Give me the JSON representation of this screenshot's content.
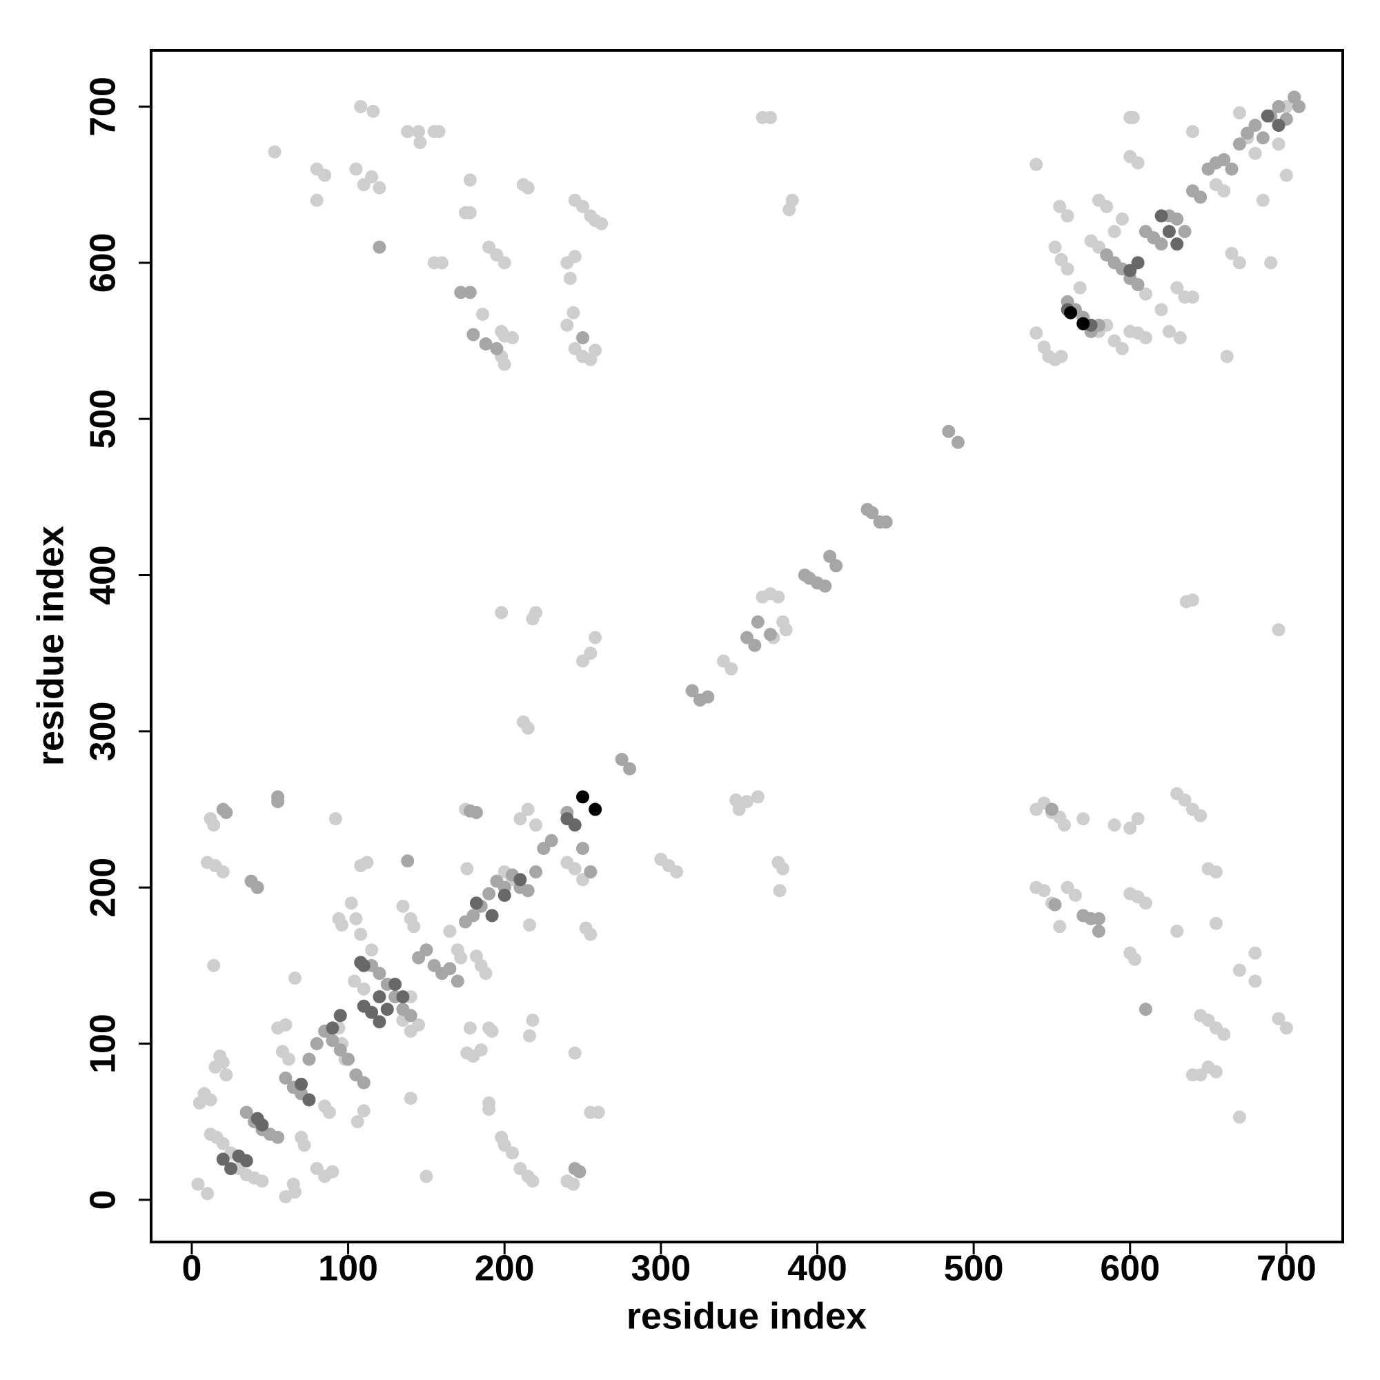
{
  "chart_data": {
    "type": "scatter",
    "x_label": "residue index",
    "y_label": "residue index",
    "xlim": [
      -26,
      736
    ],
    "ylim": [
      -27,
      736
    ],
    "xticks": [
      0,
      100,
      200,
      300,
      400,
      500,
      600,
      700
    ],
    "yticks": [
      0,
      100,
      200,
      300,
      400,
      500,
      600,
      700
    ],
    "series": [
      {
        "color": "#cecece",
        "x": [
          4,
          10,
          5,
          8,
          12,
          15,
          18,
          20,
          22,
          12,
          16,
          20,
          25,
          30,
          35,
          40,
          45,
          12,
          14,
          10,
          15,
          20,
          14,
          60,
          66,
          65,
          55,
          60,
          58,
          62,
          70,
          72,
          66,
          80,
          85,
          90,
          85,
          88,
          94,
          96,
          98,
          92,
          94,
          96,
          102,
          105,
          108,
          112,
          108,
          104,
          110,
          115,
          110,
          106,
          135,
          140,
          142,
          140,
          135,
          140,
          145,
          140,
          150,
          165,
          170,
          172,
          175,
          176,
          178,
          176,
          180,
          185,
          182,
          185,
          188,
          190,
          192,
          190,
          190,
          198,
          200,
          205,
          210,
          215,
          218,
          200,
          205,
          210,
          215,
          220,
          216,
          218,
          216,
          220,
          218,
          198,
          245,
          240,
          244,
          240,
          245,
          250,
          252,
          255,
          260,
          255,
          250,
          255,
          258,
          212,
          215,
          305,
          300,
          310,
          345,
          340,
          348,
          350,
          355,
          362,
          365,
          370,
          375,
          378,
          380,
          375,
          378,
          376,
          372,
          53,
          108,
          116,
          105,
          110,
          115,
          120,
          80,
          85,
          80,
          138,
          145,
          146,
          155,
          158,
          155,
          160,
          175,
          178,
          178,
          186,
          190,
          195,
          200,
          198,
          200,
          205,
          198,
          200,
          212,
          215,
          240,
          242,
          245,
          244,
          240,
          245,
          250,
          255,
          258,
          262,
          245,
          250,
          255,
          258,
          365,
          370,
          384,
          382,
          540,
          540,
          545,
          548,
          552,
          556,
          555,
          560,
          552,
          556,
          560,
          568,
          575,
          580,
          580,
          585,
          590,
          595,
          580,
          585,
          590,
          595,
          600,
          602,
          600,
          605,
          600,
          605,
          610,
          610,
          620,
          625,
          632,
          630,
          635,
          640,
          640,
          650,
          655,
          660,
          662,
          670,
          675,
          680,
          685,
          690,
          695,
          700,
          705,
          700,
          670,
          665,
          540,
          545,
          550,
          555,
          558,
          570,
          540,
          545,
          550,
          555,
          560,
          565,
          590,
          600,
          605,
          630,
          635,
          640,
          645,
          600,
          605,
          610,
          600,
          603,
          630,
          640,
          636,
          650,
          655,
          655,
          670,
          680,
          680,
          645,
          650,
          655,
          660,
          640,
          645,
          650,
          655,
          670,
          695,
          695,
          700
        ],
        "y": [
          10,
          4,
          62,
          68,
          64,
          85,
          92,
          88,
          80,
          42,
          40,
          36,
          30,
          20,
          16,
          14,
          12,
          244,
          240,
          216,
          214,
          210,
          150,
          2,
          5,
          10,
          110,
          112,
          95,
          90,
          40,
          35,
          142,
          20,
          15,
          18,
          60,
          56,
          110,
          100,
          90,
          244,
          180,
          176,
          190,
          180,
          214,
          216,
          170,
          140,
          135,
          160,
          57,
          50,
          188,
          180,
          175,
          130,
          115,
          108,
          112,
          65,
          15,
          172,
          160,
          155,
          250,
          212,
          110,
          94,
          92,
          96,
          156,
          150,
          145,
          110,
          108,
          62,
          58,
          40,
          35,
          30,
          20,
          15,
          12,
          210,
          205,
          244,
          250,
          240,
          176,
          115,
          105,
          376,
          372,
          376,
          94,
          12,
          10,
          216,
          212,
          205,
          174,
          170,
          56,
          56,
          345,
          350,
          360,
          306,
          302,
          214,
          218,
          210,
          340,
          345,
          256,
          250,
          255,
          258,
          386,
          388,
          386,
          370,
          365,
          216,
          212,
          198,
          360,
          671,
          700,
          697,
          660,
          650,
          655,
          648,
          660,
          656,
          640,
          684,
          684,
          677,
          684,
          684,
          600,
          600,
          632,
          632,
          653,
          567,
          610,
          605,
          600,
          556,
          553,
          552,
          540,
          535,
          650,
          648,
          600,
          590,
          604,
          568,
          560,
          640,
          636,
          630,
          627,
          625,
          545,
          540,
          538,
          544,
          693,
          693,
          640,
          634,
          663,
          555,
          546,
          540,
          538,
          540,
          636,
          630,
          610,
          602,
          596,
          584,
          614,
          610,
          556,
          560,
          550,
          545,
          640,
          636,
          620,
          628,
          693,
          693,
          668,
          664,
          556,
          555,
          552,
          580,
          570,
          556,
          552,
          584,
          578,
          578,
          684,
          660,
          650,
          646,
          540,
          696,
          680,
          670,
          640,
          600,
          676,
          700,
          706,
          656,
          600,
          606,
          250,
          254,
          248,
          245,
          240,
          244,
          200,
          198,
          190,
          175,
          200,
          195,
          240,
          238,
          244,
          260,
          256,
          250,
          246,
          196,
          194,
          190,
          158,
          154,
          172,
          384,
          383,
          212,
          210,
          177,
          147,
          158,
          140,
          118,
          115,
          110,
          106,
          80,
          80,
          85,
          82,
          53,
          365,
          116,
          110
        ]
      },
      {
        "color": "#a6a6a6",
        "x": [
          20,
          22,
          38,
          42,
          55,
          55,
          35,
          40,
          45,
          50,
          55,
          60,
          65,
          70,
          75,
          80,
          85,
          90,
          95,
          100,
          105,
          110,
          115,
          120,
          125,
          130,
          135,
          140,
          145,
          150,
          155,
          160,
          165,
          170,
          175,
          180,
          185,
          190,
          195,
          200,
          205,
          210,
          215,
          220,
          225,
          230,
          182,
          178,
          240,
          250,
          255,
          275,
          280,
          320,
          325,
          330,
          355,
          360,
          362,
          370,
          392,
          395,
          400,
          405,
          408,
          412,
          432,
          435,
          440,
          444,
          484,
          490,
          560,
          565,
          570,
          575,
          580,
          585,
          590,
          595,
          600,
          605,
          610,
          615,
          620,
          625,
          630,
          635,
          640,
          645,
          650,
          655,
          660,
          665,
          670,
          675,
          680,
          685,
          690,
          695,
          700,
          705,
          708,
          120,
          550,
          552,
          570,
          575,
          580,
          580,
          610,
          172,
          178,
          180,
          188,
          195,
          250,
          248,
          245,
          138
        ],
        "y": [
          250,
          248,
          204,
          200,
          258,
          255,
          56,
          50,
          45,
          42,
          40,
          78,
          72,
          68,
          90,
          100,
          108,
          102,
          96,
          90,
          80,
          75,
          150,
          145,
          138,
          130,
          122,
          118,
          155,
          160,
          150,
          145,
          148,
          140,
          178,
          182,
          188,
          196,
          204,
          200,
          208,
          200,
          198,
          210,
          225,
          230,
          248,
          249,
          248,
          225,
          210,
          282,
          276,
          326,
          320,
          322,
          360,
          355,
          370,
          362,
          400,
          398,
          395,
          393,
          412,
          406,
          442,
          440,
          434,
          434,
          492,
          485,
          575,
          570,
          565,
          556,
          560,
          605,
          600,
          596,
          590,
          586,
          620,
          616,
          612,
          630,
          628,
          620,
          646,
          642,
          660,
          664,
          666,
          660,
          676,
          683,
          688,
          680,
          694,
          700,
          692,
          706,
          700,
          610,
          250,
          189,
          182,
          180,
          172,
          180,
          122,
          581,
          581,
          554,
          548,
          545,
          552,
          18,
          20,
          217
        ]
      },
      {
        "color": "#686868",
        "x": [
          20,
          25,
          30,
          35,
          42,
          45,
          70,
          75,
          110,
          115,
          120,
          125,
          130,
          135,
          120,
          110,
          108,
          90,
          95,
          182,
          192,
          200,
          210,
          240,
          245,
          560,
          620,
          625,
          630,
          600,
          605,
          695,
          688,
          575
        ],
        "y": [
          26,
          20,
          28,
          25,
          52,
          48,
          74,
          64,
          124,
          120,
          130,
          122,
          138,
          130,
          114,
          150,
          152,
          110,
          118,
          190,
          182,
          195,
          205,
          244,
          240,
          570,
          630,
          620,
          612,
          595,
          600,
          688,
          694,
          560
        ]
      },
      {
        "color": "#000000",
        "x": [
          250,
          258,
          570,
          562
        ],
        "y": [
          258,
          250,
          561,
          568
        ]
      }
    ]
  }
}
